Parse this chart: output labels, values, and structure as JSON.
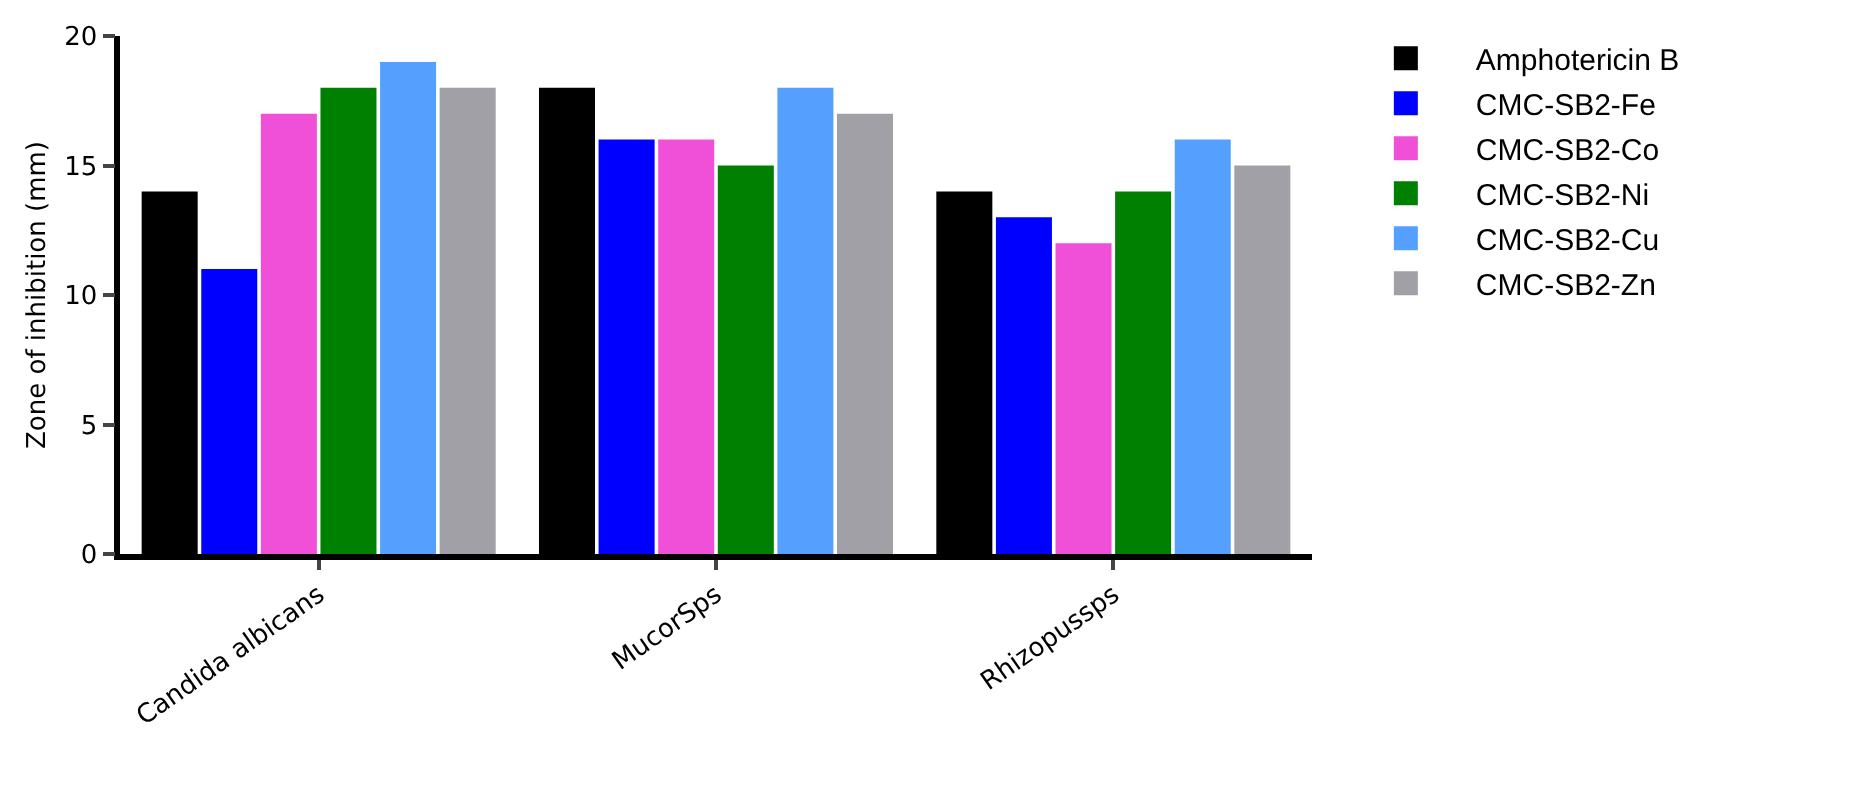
{
  "chart_data": {
    "type": "bar",
    "ylabel": "Zone of inhibition (mm)",
    "categories": [
      "Candida albicans",
      "MucorSps",
      "Rhizopussps"
    ],
    "series": [
      {
        "name": "Amphotericin B",
        "color": "#000000",
        "values": [
          14,
          18,
          14
        ]
      },
      {
        "name": "CMC-SB2-Fe",
        "color": "#0000ff",
        "values": [
          11,
          16,
          13
        ]
      },
      {
        "name": "CMC-SB2-Co",
        "color": "#f050d8",
        "values": [
          17,
          16,
          12
        ]
      },
      {
        "name": "CMC-SB2-Ni",
        "color": "#008000",
        "values": [
          18,
          15,
          14
        ]
      },
      {
        "name": "CMC-SB2-Cu",
        "color": "#55a0ff",
        "values": [
          19,
          18,
          16
        ]
      },
      {
        "name": "CMC-SB2-Zn",
        "color": "#a0a0a6",
        "values": [
          18,
          17,
          15
        ]
      }
    ],
    "ylim": [
      0,
      20
    ],
    "yticks": [
      0,
      5,
      10,
      15,
      20
    ],
    "grid": false,
    "legend": "top right"
  }
}
